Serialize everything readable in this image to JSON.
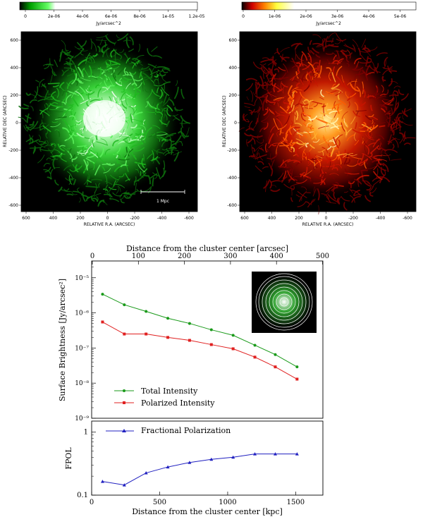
{
  "chart_data": [
    {
      "type": "heatmap",
      "colormap": "green",
      "colorbar": {
        "ticks": [
          "0",
          "2e-06",
          "4e-06",
          "6e-06",
          "8e-06",
          "1e-05",
          "1.2e-05"
        ],
        "label": "Jy/arcsec^2"
      },
      "xlabel": "RELATIVE R.A. (ARCSEC)",
      "ylabel": "RELATIVE DEC (ARCSEC)",
      "xticks": [
        "600",
        "400",
        "200",
        "0",
        "-200",
        "-400",
        "-600"
      ],
      "yticks": [
        "600",
        "400",
        "200",
        "0",
        "-200",
        "-400",
        "-600"
      ],
      "scalebar_label": "1 Mpc"
    },
    {
      "type": "heatmap",
      "colormap": "heat",
      "colorbar": {
        "ticks": [
          "0",
          "1e-06",
          "2e-06",
          "3e-06",
          "4e-06",
          "5e-06"
        ],
        "label": "Jy/arcsec^2"
      },
      "xlabel": "RELATIVE R.A. (ARCSEC)",
      "ylabel": "RELATIVE DEC (ARCSEC)",
      "xticks": [
        "600",
        "400",
        "200",
        "0",
        "-200",
        "-400",
        "-600"
      ],
      "yticks": [
        "600",
        "400",
        "200",
        "0",
        "-200",
        "-400",
        "-600"
      ]
    },
    {
      "type": "line",
      "ylabel": "Surface Brightness [Jy/arcsec²]",
      "top_xlabel": "Distance from the cluster center [arcsec]",
      "top_xticks": [
        "0",
        "100",
        "200",
        "300",
        "400",
        "500"
      ],
      "y_log": true,
      "ylim": [
        1e-09,
        3e-05
      ],
      "yticks": [
        "10⁻⁹",
        "10⁻⁸",
        "10⁻⁷",
        "10⁻⁶",
        "10⁻⁵"
      ],
      "x": [
        80,
        240,
        400,
        560,
        720,
        880,
        1040,
        1200,
        1350,
        1510
      ],
      "series": [
        {
          "name": "Total Intensity",
          "color": "#1a9a1a",
          "values": [
            3.4e-06,
            1.7e-06,
            1.1e-06,
            7e-07,
            5e-07,
            3.3e-07,
            2.3e-07,
            1.2e-07,
            6.5e-08,
            2.9e-08
          ]
        },
        {
          "name": "Polarized Intensity",
          "color": "#e02020",
          "values": [
            5.5e-07,
            2.5e-07,
            2.5e-07,
            2e-07,
            1.65e-07,
            1.25e-07,
            9.5e-08,
            5.5e-08,
            2.9e-08,
            1.3e-08
          ]
        }
      ]
    },
    {
      "type": "line",
      "ylabel": "FPOL",
      "xlabel": "Distance from the cluster center [kpc]",
      "xticks": [
        "0",
        "500",
        "1000",
        "1500"
      ],
      "y_log": true,
      "ylim": [
        0.1,
        1.5
      ],
      "yticks": [
        "0.1",
        "1"
      ],
      "x": [
        80,
        240,
        400,
        560,
        720,
        880,
        1040,
        1200,
        1350,
        1510
      ],
      "series": [
        {
          "name": "Fractional Polarization",
          "color": "#2020c0",
          "values": [
            0.165,
            0.145,
            0.225,
            0.28,
            0.33,
            0.37,
            0.4,
            0.45,
            0.45,
            0.45
          ]
        }
      ]
    }
  ]
}
